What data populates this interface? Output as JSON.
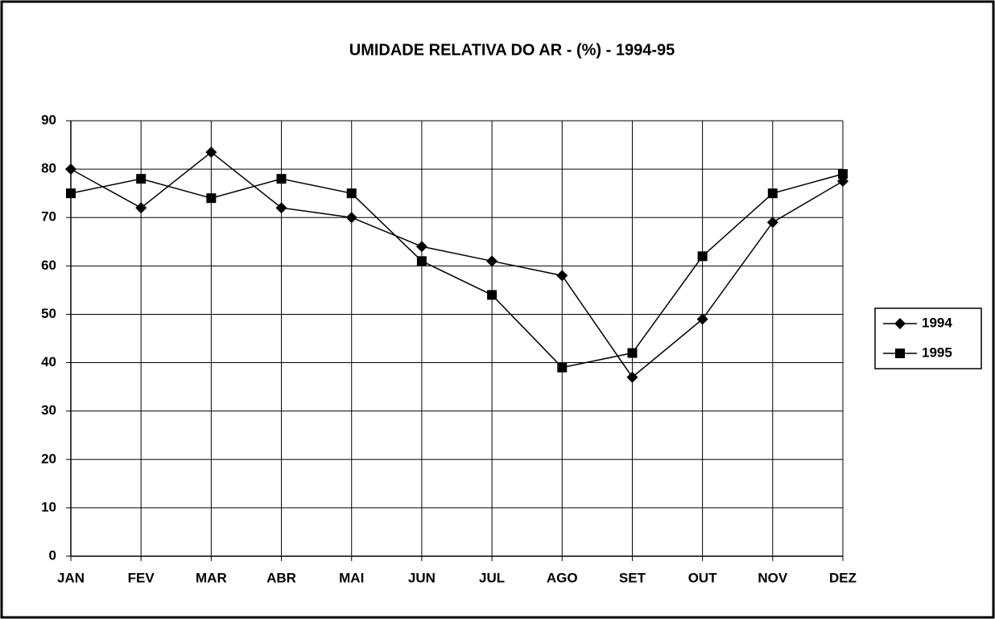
{
  "chart_data": {
    "type": "line",
    "title": "UMIDADE RELATIVA DO AR - (%) - 1994-95",
    "categories": [
      "JAN",
      "FEV",
      "MAR",
      "ABR",
      "MAI",
      "JUN",
      "JUL",
      "AGO",
      "SET",
      "OUT",
      "NOV",
      "DEZ"
    ],
    "series": [
      {
        "name": "1994",
        "color": "#000000",
        "marker": "diamond",
        "values": [
          80,
          72,
          83.5,
          72,
          70,
          64,
          61,
          58,
          37,
          49,
          69,
          77.5
        ]
      },
      {
        "name": "1995",
        "color": "#000000",
        "marker": "square",
        "values": [
          75,
          78,
          74,
          78,
          75,
          61,
          54,
          39,
          42,
          62,
          75,
          79
        ]
      }
    ],
    "ylim": [
      0,
      90
    ],
    "yticks": [
      0,
      10,
      20,
      30,
      40,
      50,
      60,
      70,
      80,
      90
    ],
    "grid": true,
    "legend": "right"
  }
}
